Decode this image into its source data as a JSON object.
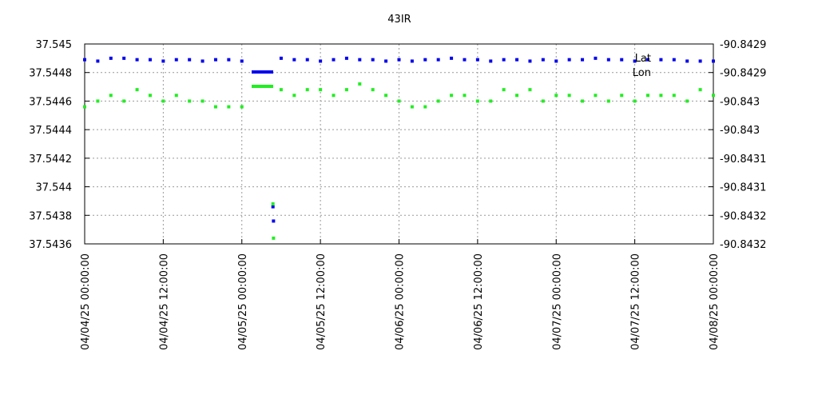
{
  "chart_data": {
    "type": "scatter",
    "title": "43IR",
    "x": [
      "04/04/25 00:00:00",
      "04/04/25 02:00:00",
      "04/04/25 04:00:00",
      "04/04/25 06:00:00",
      "04/04/25 08:00:00",
      "04/04/25 10:00:00",
      "04/04/25 12:00:00",
      "04/04/25 14:00:00",
      "04/04/25 16:00:00",
      "04/04/25 18:00:00",
      "04/04/25 20:00:00",
      "04/04/25 22:00:00",
      "04/05/25 00:00:00",
      "04/05/25 04:45:00",
      "04/05/25 04:50:00",
      "04/05/25 06:00:00",
      "04/05/25 08:00:00",
      "04/05/25 10:00:00",
      "04/05/25 12:00:00",
      "04/05/25 14:00:00",
      "04/05/25 16:00:00",
      "04/05/25 18:00:00",
      "04/05/25 20:00:00",
      "04/05/25 22:00:00",
      "04/06/25 00:00:00",
      "04/06/25 02:00:00",
      "04/06/25 04:00:00",
      "04/06/25 06:00:00",
      "04/06/25 08:00:00",
      "04/06/25 10:00:00",
      "04/06/25 12:00:00",
      "04/06/25 14:00:00",
      "04/06/25 16:00:00",
      "04/06/25 18:00:00",
      "04/06/25 20:00:00",
      "04/06/25 22:00:00",
      "04/07/25 00:00:00",
      "04/07/25 02:00:00",
      "04/07/25 04:00:00",
      "04/07/25 06:00:00",
      "04/07/25 08:00:00",
      "04/07/25 10:00:00",
      "04/07/25 12:00:00",
      "04/07/25 14:00:00",
      "04/07/25 16:00:00",
      "04/07/25 18:00:00",
      "04/07/25 20:00:00",
      "04/07/25 22:00:00",
      "04/08/25 00:00:00"
    ],
    "series": [
      {
        "name": "Lat",
        "color": "#0000ee",
        "axis": "y",
        "values": [
          37.54489,
          37.54488,
          37.5449,
          37.5449,
          37.54489,
          37.54489,
          37.54488,
          37.54489,
          37.54489,
          37.54488,
          37.54489,
          37.54489,
          37.54488,
          37.54386,
          37.54376,
          37.5449,
          37.54489,
          37.54489,
          37.54488,
          37.54489,
          37.5449,
          37.54489,
          37.54489,
          37.54488,
          37.54489,
          37.54488,
          37.54489,
          37.54489,
          37.5449,
          37.54489,
          37.54489,
          37.54488,
          37.54489,
          37.54489,
          37.54488,
          37.54489,
          37.54488,
          37.54489,
          37.54489,
          37.5449,
          37.54489,
          37.54489,
          37.54488,
          37.54489,
          37.54489,
          37.54489,
          37.54488,
          37.54488,
          37.54488
        ]
      },
      {
        "name": "Lon",
        "color": "#22ee22",
        "axis": "y2",
        "values": [
          -90.84299,
          -90.84298,
          -90.84297,
          -90.84298,
          -90.84296,
          -90.84297,
          -90.84298,
          -90.84297,
          -90.84298,
          -90.84298,
          -90.84299,
          -90.84299,
          -90.84299,
          -90.84316,
          -90.84322,
          -90.84296,
          -90.84297,
          -90.84296,
          -90.84296,
          -90.84297,
          -90.84296,
          -90.84295,
          -90.84296,
          -90.84297,
          -90.84298,
          -90.84299,
          -90.84299,
          -90.84298,
          -90.84297,
          -90.84297,
          -90.84298,
          -90.84298,
          -90.84296,
          -90.84297,
          -90.84296,
          -90.84298,
          -90.84297,
          -90.84297,
          -90.84298,
          -90.84297,
          -90.84298,
          -90.84297,
          -90.84298,
          -90.84297,
          -90.84297,
          -90.84297,
          -90.84298,
          -90.84296,
          -90.84297
        ]
      }
    ],
    "ylim": [
      37.5436,
      37.545
    ],
    "yticks": [
      37.5436,
      37.5438,
      37.544,
      37.5442,
      37.5444,
      37.5446,
      37.5448,
      37.545
    ],
    "y2lim": [
      -90.84323,
      -90.84288
    ],
    "y2ticks": [
      {
        "value": -90.84323,
        "label": "-90.8432"
      },
      {
        "value": -90.84318,
        "label": "-90.8432"
      },
      {
        "value": -90.84313,
        "label": "-90.8431"
      },
      {
        "value": -90.84308,
        "label": "-90.8431"
      },
      {
        "value": -90.84303,
        "label": "-90.843"
      },
      {
        "value": -90.84298,
        "label": "-90.843"
      },
      {
        "value": -90.84293,
        "label": "-90.8429"
      },
      {
        "value": -90.84288,
        "label": "-90.8429"
      }
    ],
    "xlim": [
      "04/04/25 00:00:00",
      "04/08/25 00:00:00"
    ],
    "xticks": [
      "04/04/25 00:00:00",
      "04/04/25 12:00:00",
      "04/05/25 00:00:00",
      "04/05/25 12:00:00",
      "04/06/25 00:00:00",
      "04/06/25 12:00:00",
      "04/07/25 00:00:00",
      "04/07/25 12:00:00",
      "04/08/25 00:00:00"
    ],
    "grid": true,
    "legend": "top-right"
  }
}
